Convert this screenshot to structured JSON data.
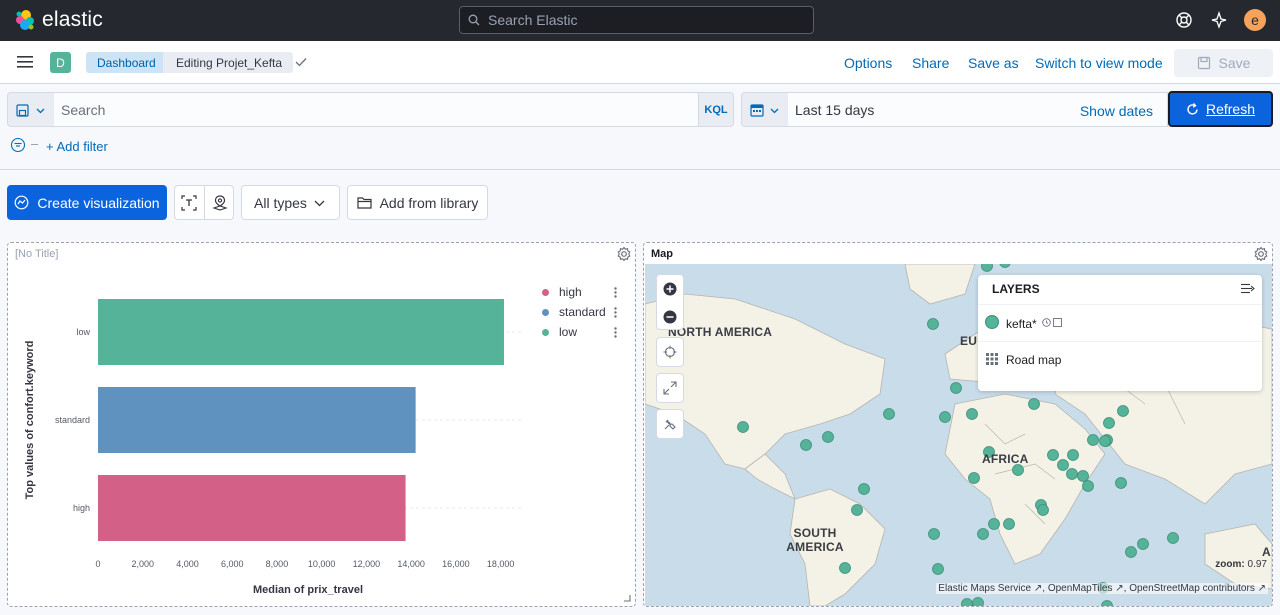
{
  "header": {
    "logo_text": "elastic",
    "search_placeholder": "Search Elastic",
    "avatar_initial": "e"
  },
  "nav": {
    "space_initial": "D",
    "breadcrumb_dashboard": "Dashboard",
    "breadcrumb_editing": "Editing Projet_Kefta",
    "options": "Options",
    "share": "Share",
    "save_as": "Save as",
    "switch_mode": "Switch to view mode",
    "save": "Save"
  },
  "query": {
    "search_placeholder": "Search",
    "language": "KQL",
    "date_range": "Last 15 days",
    "show_dates": "Show dates",
    "refresh": "Refresh",
    "add_filter": "+ Add filter"
  },
  "toolbar": {
    "create_visualization": "Create visualization",
    "all_types": "All types",
    "add_from_library": "Add from library"
  },
  "panel_chart": {
    "title": "[No Title]"
  },
  "chart_data": {
    "type": "bar",
    "orientation": "horizontal",
    "categories": [
      "low",
      "standard",
      "high"
    ],
    "values": [
      18150,
      14200,
      13750
    ],
    "colors": [
      "#54b399",
      "#6092c0",
      "#d36086"
    ],
    "xlabel": "Median of prix_travel",
    "ylabel": "Top values of confort.keyword",
    "xlim": [
      0,
      19000
    ],
    "xticks": [
      0,
      2000,
      4000,
      6000,
      8000,
      10000,
      12000,
      14000,
      16000,
      18000
    ],
    "xtick_labels": [
      "0",
      "2,000",
      "4,000",
      "6,000",
      "8,000",
      "10,000",
      "12,000",
      "14,000",
      "16,000",
      "18,000"
    ],
    "legend": [
      {
        "name": "high",
        "color": "#d36086"
      },
      {
        "name": "standard",
        "color": "#6092c0"
      },
      {
        "name": "low",
        "color": "#54b399"
      }
    ],
    "legend_position": "top-right",
    "grid": true
  },
  "panel_map": {
    "title": "Map",
    "layers_title": "LAYERS",
    "layer_1": "kefta*",
    "layer_2": "Road map",
    "zoom_text": "zoom:",
    "zoom_value": "0.97",
    "attribution_1": "Elastic Maps Service",
    "attribution_2": "OpenMapTiles",
    "attribution_3": "OpenStreetMap contributors",
    "label_north_america": "NORTH AMERICA",
    "label_south_america": "SOUTH AMERICA",
    "label_africa": "AFRICA",
    "label_europe": "EU",
    "label_asia": "A",
    "point_color": "#54b399"
  }
}
